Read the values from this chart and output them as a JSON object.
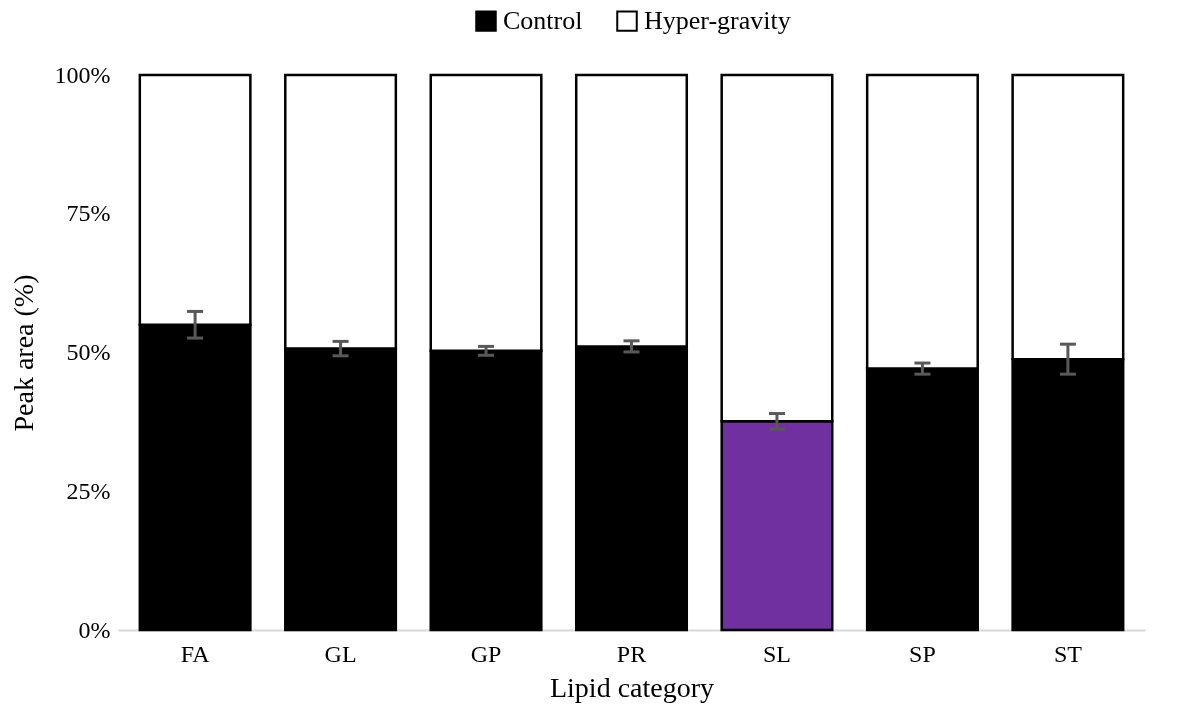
{
  "chart_data": {
    "type": "bar",
    "stacked": true,
    "xlabel": "Lipid category",
    "ylabel": "Peak area (%)",
    "categories": [
      "FA",
      "GL",
      "GP",
      "PR",
      "SL",
      "SP",
      "ST"
    ],
    "series": [
      {
        "name": "Control",
        "color": "#000000",
        "colors": [
          "#000000",
          "#000000",
          "#000000",
          "#000000",
          "#7030a0",
          "#000000",
          "#000000"
        ],
        "values": [
          55,
          50.7,
          50.3,
          51.1,
          37.6,
          47.1,
          48.8
        ],
        "errors": [
          2.4,
          1.3,
          0.8,
          1,
          1.4,
          1,
          2.7
        ]
      },
      {
        "name": "Hyper-gravity",
        "color": "#ffffff",
        "values": [
          45,
          49.3,
          49.7,
          48.9,
          62.4,
          52.9,
          51.2
        ]
      }
    ],
    "ylim": [
      0,
      100
    ],
    "yticks": [
      {
        "value": 0,
        "label": "0%"
      },
      {
        "value": 25,
        "label": "25%"
      },
      {
        "value": 50,
        "label": "50%"
      },
      {
        "value": 75,
        "label": "75%"
      },
      {
        "value": 100,
        "label": "100%"
      }
    ],
    "grid": false,
    "legend": "top"
  }
}
